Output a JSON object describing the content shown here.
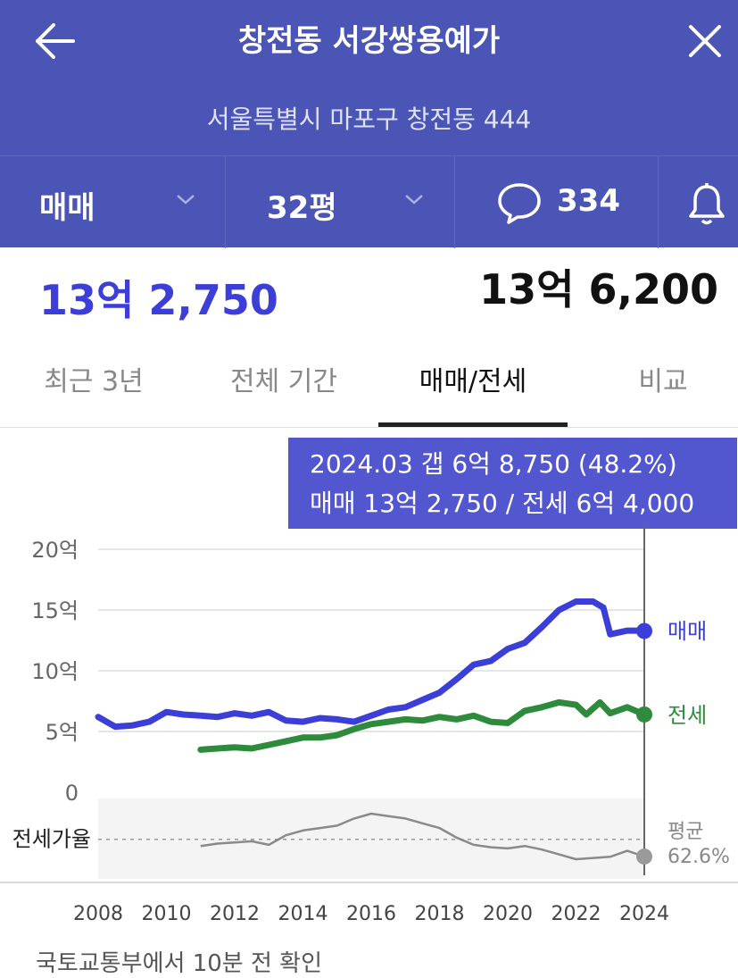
{
  "header": {
    "title": "창전동 서강쌍용예가",
    "address": "서울특별시 마포구 창전동 444"
  },
  "filters": {
    "deal_type": "매매",
    "size": "32평",
    "comment_count": "334"
  },
  "prices": {
    "selected": "13억 2,750",
    "latest": "13억 6,200"
  },
  "tabs": [
    {
      "label": "최근 3년"
    },
    {
      "label": "전체 기간"
    },
    {
      "label": "매매/전세"
    },
    {
      "label": "비교"
    }
  ],
  "active_tab": 2,
  "tooltip": {
    "line1": "2024.03  갭 6억 8,750 (48.2%)",
    "line2": "매매 13억 2,750 / 전세 6억 4,000"
  },
  "footer": "국토교통부에서 10분 전 확인",
  "chart_data": {
    "type": "line",
    "x_ticks": [
      "2008",
      "2010",
      "2012",
      "2014",
      "2016",
      "2018",
      "2020",
      "2022",
      "2024"
    ],
    "y_ticks": [
      "20억",
      "15억",
      "10억",
      "5억",
      "0"
    ],
    "ylim": [
      0,
      20
    ],
    "series": [
      {
        "name": "매매",
        "color": "#3b3fd8",
        "points": [
          [
            2008.0,
            6.2
          ],
          [
            2008.5,
            5.4
          ],
          [
            2009.0,
            5.5
          ],
          [
            2009.5,
            5.8
          ],
          [
            2010.0,
            6.6
          ],
          [
            2010.5,
            6.4
          ],
          [
            2011.0,
            6.3
          ],
          [
            2011.5,
            6.2
          ],
          [
            2012.0,
            6.5
          ],
          [
            2012.5,
            6.3
          ],
          [
            2013.0,
            6.6
          ],
          [
            2013.5,
            5.9
          ],
          [
            2014.0,
            5.8
          ],
          [
            2014.5,
            6.1
          ],
          [
            2015.0,
            6.0
          ],
          [
            2015.5,
            5.8
          ],
          [
            2016.0,
            6.3
          ],
          [
            2016.5,
            6.8
          ],
          [
            2017.0,
            7.0
          ],
          [
            2017.5,
            7.6
          ],
          [
            2018.0,
            8.2
          ],
          [
            2018.5,
            9.3
          ],
          [
            2019.0,
            10.5
          ],
          [
            2019.5,
            10.8
          ],
          [
            2020.0,
            11.8
          ],
          [
            2020.5,
            12.3
          ],
          [
            2021.0,
            13.6
          ],
          [
            2021.5,
            15.0
          ],
          [
            2022.0,
            15.7
          ],
          [
            2022.5,
            15.7
          ],
          [
            2022.8,
            15.2
          ],
          [
            2023.0,
            13.0
          ],
          [
            2023.5,
            13.3
          ],
          [
            2024.0,
            13.3
          ]
        ]
      },
      {
        "name": "전세",
        "color": "#2e8b3c",
        "points": [
          [
            2011.0,
            3.5
          ],
          [
            2011.5,
            3.6
          ],
          [
            2012.0,
            3.7
          ],
          [
            2012.5,
            3.6
          ],
          [
            2013.0,
            3.9
          ],
          [
            2013.5,
            4.2
          ],
          [
            2014.0,
            4.5
          ],
          [
            2014.5,
            4.5
          ],
          [
            2015.0,
            4.7
          ],
          [
            2015.5,
            5.2
          ],
          [
            2016.0,
            5.6
          ],
          [
            2016.5,
            5.8
          ],
          [
            2017.0,
            6.0
          ],
          [
            2017.5,
            5.9
          ],
          [
            2018.0,
            6.2
          ],
          [
            2018.5,
            6.0
          ],
          [
            2019.0,
            6.3
          ],
          [
            2019.5,
            5.8
          ],
          [
            2020.0,
            5.7
          ],
          [
            2020.5,
            6.7
          ],
          [
            2021.0,
            7.0
          ],
          [
            2021.5,
            7.4
          ],
          [
            2022.0,
            7.2
          ],
          [
            2022.3,
            6.4
          ],
          [
            2022.7,
            7.4
          ],
          [
            2023.0,
            6.5
          ],
          [
            2023.5,
            7.0
          ],
          [
            2024.0,
            6.4
          ]
        ]
      }
    ],
    "ratio": {
      "label": "전세가율",
      "avg_label": "평균",
      "avg_value": "62.6%",
      "color": "#8a8a8a",
      "points": [
        [
          2011.0,
          57
        ],
        [
          2011.5,
          59
        ],
        [
          2012.0,
          60
        ],
        [
          2012.5,
          61
        ],
        [
          2013.0,
          58
        ],
        [
          2013.5,
          66
        ],
        [
          2014.0,
          70
        ],
        [
          2014.5,
          72
        ],
        [
          2015.0,
          74
        ],
        [
          2015.5,
          80
        ],
        [
          2016.0,
          84
        ],
        [
          2016.5,
          82
        ],
        [
          2017.0,
          80
        ],
        [
          2017.5,
          76
        ],
        [
          2018.0,
          72
        ],
        [
          2018.5,
          64
        ],
        [
          2019.0,
          58
        ],
        [
          2019.5,
          56
        ],
        [
          2020.0,
          55
        ],
        [
          2020.5,
          57
        ],
        [
          2021.0,
          54
        ],
        [
          2021.5,
          50
        ],
        [
          2022.0,
          46
        ],
        [
          2022.5,
          47
        ],
        [
          2023.0,
          48
        ],
        [
          2023.5,
          53
        ],
        [
          2024.0,
          48.2
        ]
      ]
    },
    "selected": {
      "x": 2024.0,
      "sale": 13.275,
      "jeonse": 6.4
    }
  }
}
